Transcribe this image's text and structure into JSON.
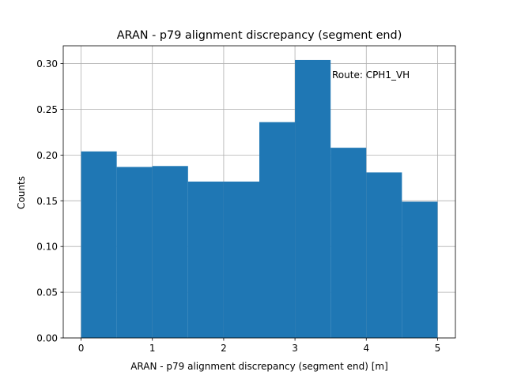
{
  "chart_data": {
    "type": "bar",
    "title": "ARAN - p79  alignment discrepancy (segment end)",
    "xlabel": "ARAN - p79  alignment discrepancy (segment end) [m]",
    "ylabel": "Counts",
    "annotation": "Route: CPH1_VH",
    "bin_edges": [
      0,
      0.5,
      1,
      1.5,
      2,
      2.5,
      3,
      3.5,
      4,
      4.5,
      5
    ],
    "values": [
      0.204,
      0.187,
      0.188,
      0.171,
      0.171,
      0.236,
      0.304,
      0.208,
      0.181,
      0.149
    ],
    "xlim": [
      -0.25,
      5.25
    ],
    "ylim": [
      0,
      0.3195
    ],
    "xticks": [
      0,
      1,
      2,
      3,
      4,
      5
    ],
    "xtick_labels": [
      "0",
      "1",
      "2",
      "3",
      "4",
      "5"
    ],
    "yticks": [
      0,
      0.05,
      0.1,
      0.15,
      0.2,
      0.25,
      0.3
    ],
    "ytick_labels": [
      "0.00",
      "0.05",
      "0.10",
      "0.15",
      "0.20",
      "0.25",
      "0.30"
    ],
    "grid": true,
    "bar_color": "#1f77b4",
    "grid_color": "#b0b0b0"
  }
}
